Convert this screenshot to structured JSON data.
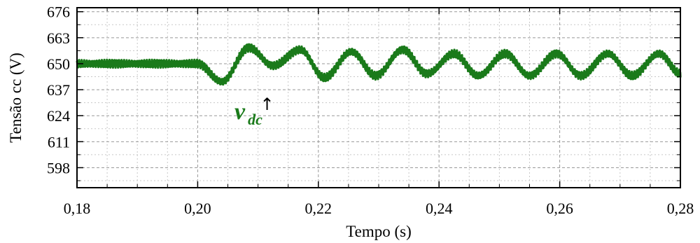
{
  "chart_data": {
    "type": "line",
    "title": "",
    "xlabel": "Tempo (s)",
    "ylabel": "Tensão cc (V)",
    "xlim": [
      0.18,
      0.28
    ],
    "ylim": [
      588,
      678
    ],
    "xticks": [
      0.18,
      0.2,
      0.22,
      0.24,
      0.26,
      0.28
    ],
    "xtick_labels": [
      "0,18",
      "0,20",
      "0,22",
      "0,24",
      "0,26",
      "0,28"
    ],
    "yticks": [
      598,
      611,
      624,
      637,
      650,
      663,
      676
    ],
    "ytick_labels": [
      "598",
      "611",
      "624",
      "637",
      "650",
      "663",
      "676"
    ],
    "grid": true,
    "series": [
      {
        "label_main": "v",
        "label_sub": "dc",
        "color": "#1a7a1a",
        "x": [
          0.18,
          0.2,
          0.204,
          0.2085,
          0.2125,
          0.217,
          0.221,
          0.2255,
          0.2295,
          0.234,
          0.238,
          0.2425,
          0.2465,
          0.251,
          0.255,
          0.2595,
          0.2635,
          0.268,
          0.272,
          0.2765,
          0.28
        ],
        "y": [
          650,
          650,
          641,
          658,
          649,
          657,
          643,
          656,
          644,
          657,
          645,
          655,
          644,
          655,
          644,
          655,
          644,
          655,
          644,
          655,
          645
        ]
      }
    ],
    "annotation": {
      "text": "↑",
      "points_to_x": 0.2115
    }
  }
}
